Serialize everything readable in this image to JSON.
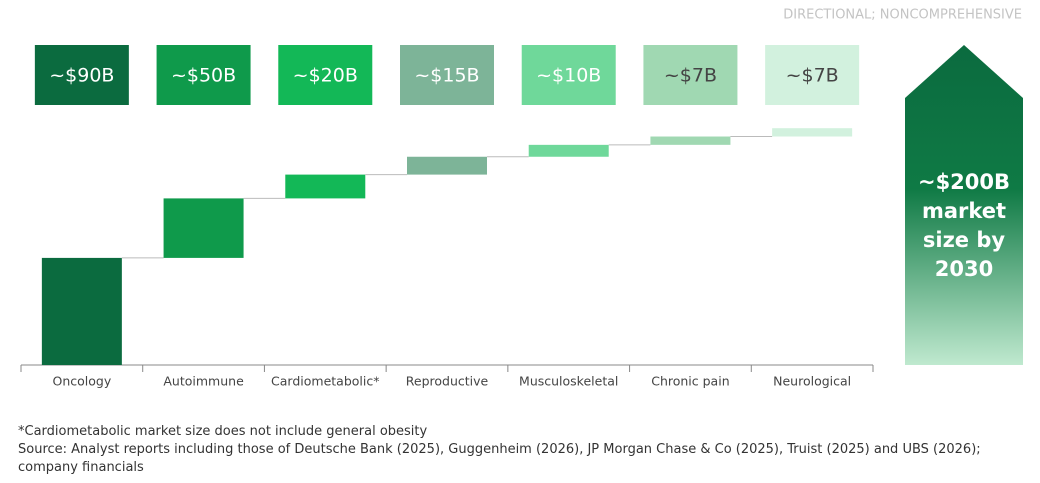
{
  "chart_data": {
    "type": "waterfall",
    "note": "DIRECTIONAL; NONCOMPREHENSIVE",
    "categories": [
      "Oncology",
      "Autoimmune",
      "Cardiometabolic*",
      "Reproductive",
      "Musculoskeletal",
      "Chronic pain",
      "Neurological"
    ],
    "values": [
      90,
      50,
      20,
      15,
      10,
      7,
      7
    ],
    "value_labels": [
      "~$90B",
      "~$50B",
      "~$20B",
      "~$15B",
      "~$10B",
      "~$7B",
      "~$7B"
    ],
    "colors": [
      "#0b6b3f",
      "#0f9a4b",
      "#13b857",
      "#7db498",
      "#6fd89a",
      "#a0d8b2",
      "#d2f1de"
    ],
    "total_label": [
      "~$200B",
      "market",
      "size by",
      "2030"
    ],
    "footnotes": [
      "*Cardiometabolic market size does not include general obesity",
      "Source: Analyst reports including those of Deutsche Bank (2025), Guggenheim (2026), JP Morgan Chase & Co (2025), Truist (2025) and UBS (2026); company financials"
    ]
  }
}
